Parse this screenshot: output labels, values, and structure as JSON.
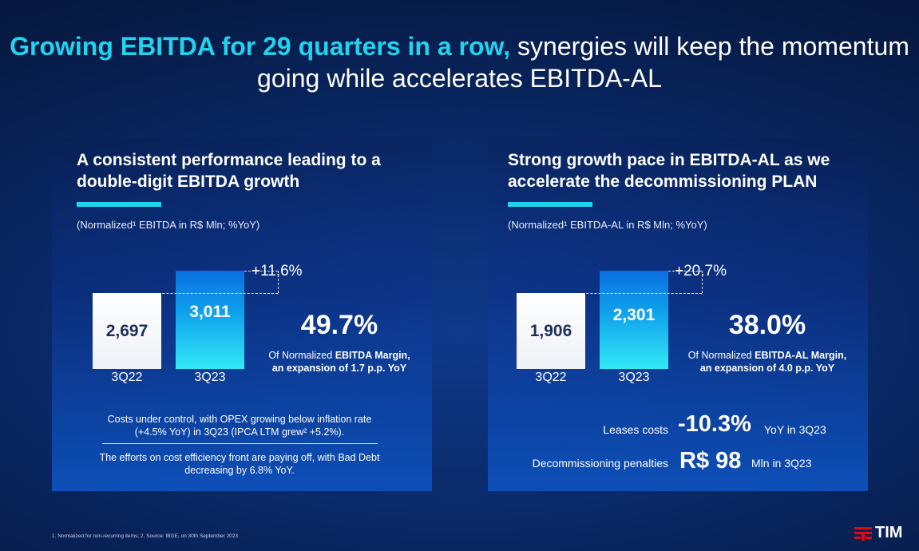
{
  "title": {
    "highlight": "Growing EBITDA for 29 quarters in a row,",
    "rest": " synergies will keep the momentum going while accelerates EBITDA-AL"
  },
  "left_panel": {
    "title": "A consistent performance leading to a double-digit EBITDA growth",
    "subtitle": "(Normalized¹ EBITDA in R$ Mln; %YoY)",
    "bars": [
      {
        "label": "3Q22",
        "value": "2,697"
      },
      {
        "label": "3Q23",
        "value": "3,011"
      }
    ],
    "growth": "+11.6%",
    "margin_value": "49.7%",
    "margin_line1_pre": "Of Normalized ",
    "margin_line1_bold": "EBITDA Margin,",
    "margin_line2": "an expansion of 1.7 p.p. YoY",
    "note1": "Costs under control, with OPEX growing below inflation rate (+4.5% YoY) in 3Q23 (IPCA LTM grew² +5.2%).",
    "note2": "The efforts on cost efficiency front are paying off, with Bad Debt decreasing by 6.8% YoY."
  },
  "right_panel": {
    "title": "Strong growth pace in EBITDA-AL as we accelerate the decommissioning PLAN",
    "subtitle": "(Normalized¹ EBITDA-AL in R$ Mln; %YoY)",
    "bars": [
      {
        "label": "3Q22",
        "value": "1,906"
      },
      {
        "label": "3Q23",
        "value": "2,301"
      }
    ],
    "growth": "+20.7%",
    "margin_value": "38.0%",
    "margin_line1_pre": "Of Normalized ",
    "margin_line1_bold": "EBITDA-AL Margin,",
    "margin_line2": "an expansion of 4.0 p.p. YoY",
    "kpis": [
      {
        "label": "Leases costs",
        "value": "-10.3%",
        "suffix": "YoY in 3Q23"
      },
      {
        "label": "Decommissioning penalties",
        "value": "R$ 98",
        "suffix": "Mln in 3Q23"
      }
    ]
  },
  "footnote": "1. Normalized for non-recurring items; 2. Source: IBGE, on 30th September 2023",
  "logo": {
    "text": "TIM",
    "icon": "tim-logo-icon"
  },
  "colors": {
    "accent": "#22d3ee",
    "bar_current": "#0fa5ec",
    "panel_bottom": "#0d4fb8"
  },
  "chart_data": [
    {
      "type": "bar",
      "categories": [
        "3Q22",
        "3Q23"
      ],
      "values": [
        2697,
        3011
      ],
      "title": "",
      "ylabel": "Normalized EBITDA in R$ Mln",
      "annotations": [
        "+11.6%"
      ]
    },
    {
      "type": "bar",
      "categories": [
        "3Q22",
        "3Q23"
      ],
      "values": [
        1906,
        2301
      ],
      "title": "",
      "ylabel": "Normalized EBITDA-AL in R$ Mln",
      "annotations": [
        "+20.7%"
      ]
    }
  ]
}
